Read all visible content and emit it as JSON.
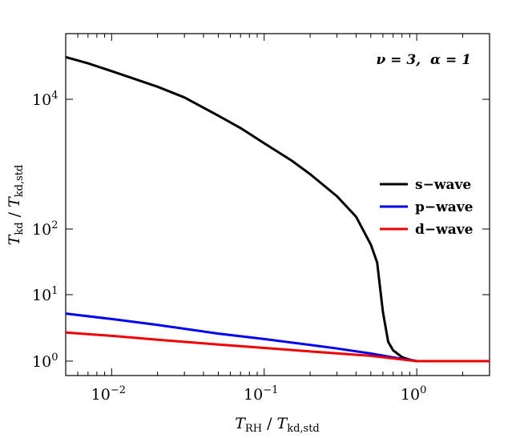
{
  "chart_data": {
    "type": "line",
    "title": "",
    "annotation": {
      "nu_label": "ν = 3,",
      "alpha_label": "α = 1"
    },
    "xlabel": {
      "base1": "T",
      "sub1": "RH",
      "slash": " / ",
      "base2": "T",
      "sub2": "kd,std"
    },
    "ylabel": {
      "base1": "T",
      "sub1": "kd",
      "slash": " / ",
      "base2": "T",
      "sub2": "kd,std"
    },
    "x_scale": "log",
    "y_scale": "log-compressed",
    "xlim": [
      0.005,
      3.0
    ],
    "ylim": [
      0.8,
      150000
    ],
    "x_ticks": [
      {
        "value": 0.01,
        "base": "10",
        "exp": "−2"
      },
      {
        "value": 0.1,
        "base": "10",
        "exp": "−1"
      },
      {
        "value": 1,
        "base": "10",
        "exp": "0"
      }
    ],
    "y_ticks": [
      {
        "value": 1,
        "base": "10",
        "exp": "0"
      },
      {
        "value": 10,
        "base": "10",
        "exp": "1"
      },
      {
        "value": 100,
        "base": "10",
        "exp": "2"
      },
      {
        "value": 10000,
        "base": "10",
        "exp": "4"
      }
    ],
    "legend_position": "right",
    "series": [
      {
        "name": "s−wave",
        "color": "#000000",
        "x": [
          0.005,
          0.007,
          0.01,
          0.02,
          0.03,
          0.05,
          0.07,
          0.1,
          0.15,
          0.2,
          0.3,
          0.4,
          0.5,
          0.55,
          0.6,
          0.65,
          0.7,
          0.8,
          0.9,
          1.0,
          1.5,
          2.0,
          3.0
        ],
        "y": [
          57000,
          44000,
          32000,
          16800,
          10800,
          5600,
          3600,
          2100,
          1150,
          700,
          320,
          155,
          58,
          31,
          5.5,
          1.95,
          1.45,
          1.15,
          1.05,
          1.0,
          1.0,
          1.0,
          1.0
        ]
      },
      {
        "name": "p−wave",
        "color": "#0000ee",
        "x": [
          0.005,
          0.01,
          0.02,
          0.05,
          0.1,
          0.2,
          0.3,
          0.5,
          0.7,
          0.9,
          1.0,
          1.5,
          2.0,
          3.0
        ],
        "y": [
          5.2,
          4.3,
          3.5,
          2.6,
          2.15,
          1.75,
          1.55,
          1.3,
          1.14,
          1.04,
          1.0,
          1.0,
          1.0,
          1.0
        ]
      },
      {
        "name": "d−wave",
        "color": "#ee0000",
        "x": [
          0.005,
          0.01,
          0.02,
          0.05,
          0.1,
          0.2,
          0.5,
          1.0,
          1.5,
          2.0,
          3.0
        ],
        "y": [
          2.7,
          2.4,
          2.1,
          1.78,
          1.58,
          1.4,
          1.2,
          1.0,
          1.0,
          1.0,
          1.0
        ]
      }
    ]
  }
}
